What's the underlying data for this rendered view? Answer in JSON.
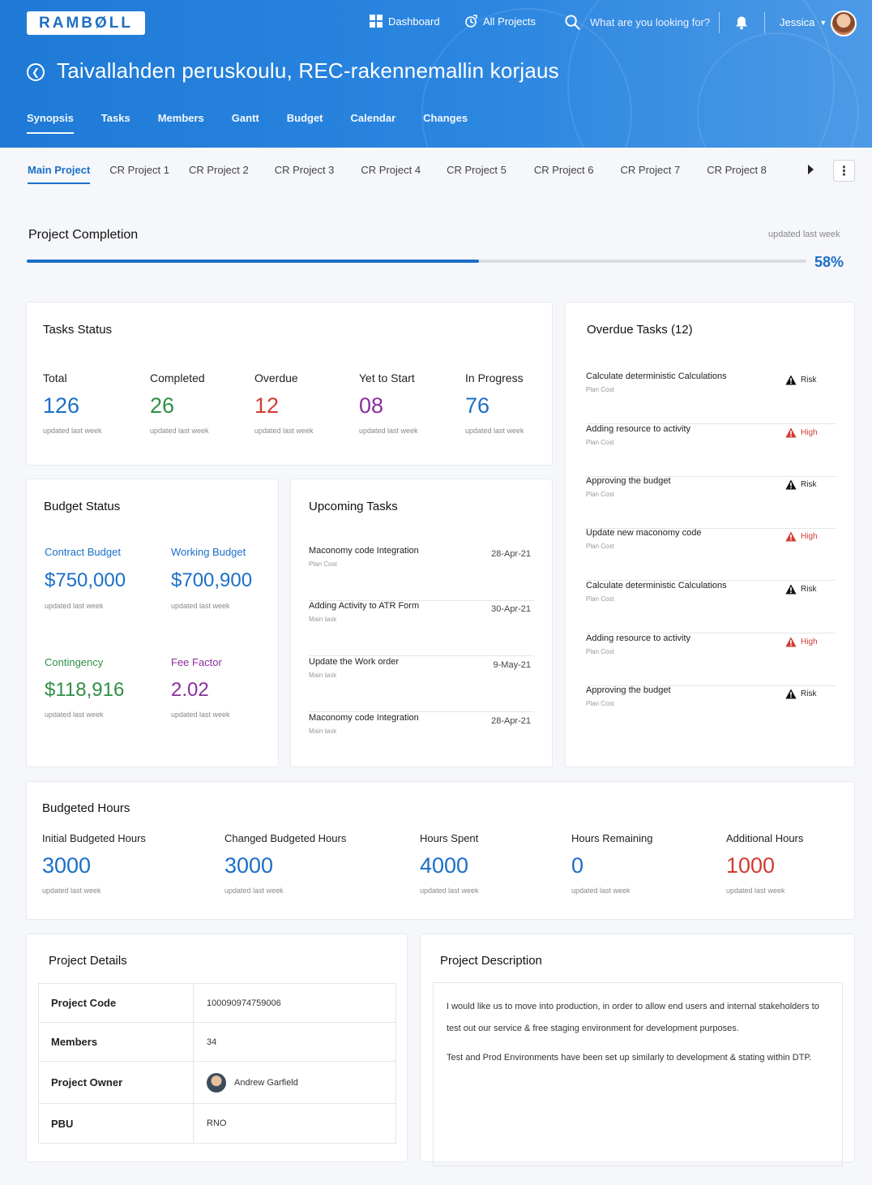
{
  "header": {
    "logo": "RAMBØLL",
    "nav": {
      "dashboard": "Dashboard",
      "all_projects": "All Projects"
    },
    "search_placeholder": "What are you looking for?",
    "user_name": "Jessica",
    "project_title": "Taivallahden peruskoulu, REC-rakennemallin korjaus",
    "tabs": [
      "Synopsis",
      "Tasks",
      "Members",
      "Gantt",
      "Budget",
      "Calendar",
      "Changes"
    ],
    "active_tab": "Synopsis"
  },
  "subtabs": [
    "Main Project",
    "CR Project 1",
    "CR Project 2",
    "CR Project 3",
    "CR Project 4",
    "CR Project 5",
    "CR Project 6",
    "CR Project 7",
    "CR Project 8"
  ],
  "completion": {
    "title": "Project Completion",
    "updated": "updated last week",
    "percent_label": "58%",
    "percent": 0.58
  },
  "tasks_status": {
    "title": "Tasks Status",
    "updated": "updated last week",
    "items": [
      {
        "label": "Total",
        "value": "126",
        "color": "#1b6fc7"
      },
      {
        "label": "Completed",
        "value": "26",
        "color": "#2e8f47"
      },
      {
        "label": "Overdue",
        "value": "12",
        "color": "#d03c32"
      },
      {
        "label": "Yet to Start",
        "value": "08",
        "color": "#8a2f9e"
      },
      {
        "label": "In Progress",
        "value": "76",
        "color": "#1b6fc7"
      }
    ]
  },
  "budget_status": {
    "title": "Budget Status",
    "updated": "updated last week",
    "contract_label": "Contract Budget",
    "contract_value": "$750,000",
    "working_label": "Working Budget",
    "working_value": "$700,900",
    "contingency_label": "Contingency",
    "contingency_value": "$118,916",
    "fee_label": "Fee Factor",
    "fee_value": "2.02"
  },
  "upcoming": {
    "title": "Upcoming Tasks",
    "rows": [
      {
        "name": "Maconomy code Integration",
        "sub": "Plan Cost",
        "date": "28-Apr-21"
      },
      {
        "name": "Adding Activity to ATR Form",
        "sub": "Main task",
        "date": "30-Apr-21"
      },
      {
        "name": "Update the Work order",
        "sub": "Main task",
        "date": "9-May-21"
      },
      {
        "name": "Maconomy code Integration",
        "sub": "Main task",
        "date": "28-Apr-21"
      }
    ]
  },
  "overdue": {
    "title": "Overdue Tasks (12)",
    "rows": [
      {
        "name": "Calculate deterministic Calculations",
        "sub": "Plan Cost",
        "flag": "Risk",
        "color": "#111111"
      },
      {
        "name": "Adding resource to activity",
        "sub": "Plan Cost",
        "flag": "High",
        "color": "#d03c32"
      },
      {
        "name": "Approving the budget",
        "sub": "Plan Cost",
        "flag": "Risk",
        "color": "#111111"
      },
      {
        "name": "Update new maconomy code",
        "sub": "Plan Cost",
        "flag": "High",
        "color": "#d03c32"
      },
      {
        "name": "Calculate deterministic Calculations",
        "sub": "Plan Cost",
        "flag": "Risk",
        "color": "#111111"
      },
      {
        "name": "Adding resource to activity",
        "sub": "Plan Cost",
        "flag": "High",
        "color": "#d03c32"
      },
      {
        "name": "Approving the budget",
        "sub": "Plan Cost",
        "flag": "Risk",
        "color": "#111111"
      }
    ]
  },
  "hours": {
    "title": "Budgeted Hours",
    "updated": "updated last week",
    "items": [
      {
        "label": "Initial Budgeted Hours",
        "value": "3000",
        "color": "#1b6fc7"
      },
      {
        "label": "Changed Budgeted Hours",
        "value": "3000",
        "color": "#1b6fc7"
      },
      {
        "label": "Hours Spent",
        "value": "4000",
        "color": "#1b6fc7"
      },
      {
        "label": "Hours Remaining",
        "value": "0",
        "color": "#1b6fc7"
      },
      {
        "label": "Additional Hours",
        "value": "1000",
        "color": "#d03c32"
      }
    ]
  },
  "details": {
    "title": "Project Details",
    "rows": [
      {
        "key": "Project Code",
        "value": "100090974759006"
      },
      {
        "key": "Members",
        "value": "34"
      },
      {
        "key": "Project Owner",
        "value": "Andrew Garfield"
      },
      {
        "key": "PBU",
        "value": "RNO"
      }
    ]
  },
  "description": {
    "title": "Project Description",
    "p1": "I would like us to move into production, in order to allow end users and internal stakeholders to test out our service & free staging environment for development purposes.",
    "p2": "Test and Prod Environments have been set up similarly to development & stating within DTP."
  }
}
